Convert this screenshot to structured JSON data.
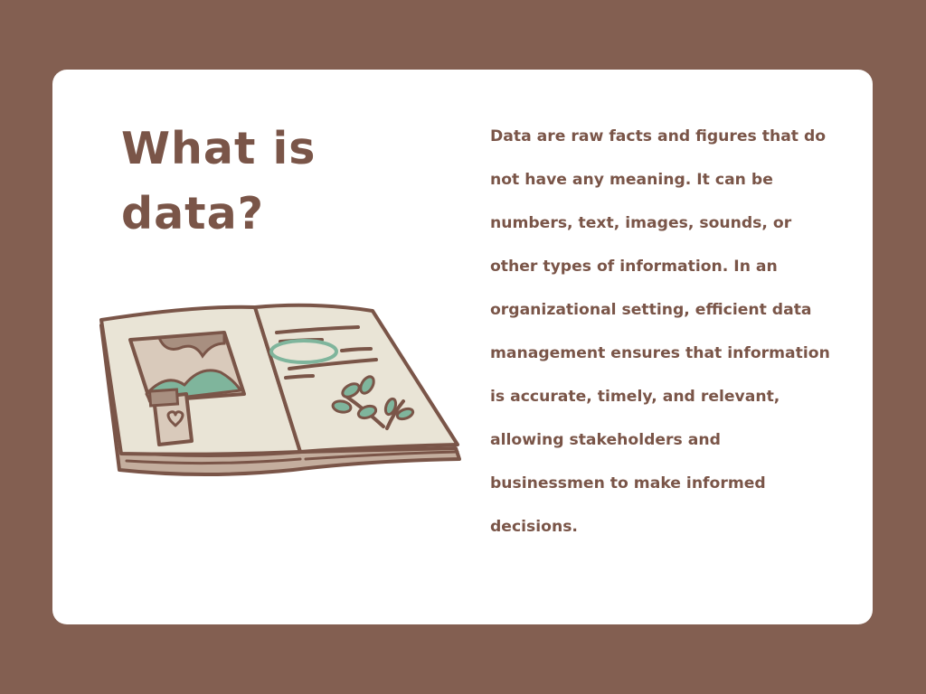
{
  "slide": {
    "title": "What is data?",
    "body": "Data are raw facts and figures that do not have any meaning. It can be numbers, text, images, sounds, or other types of information. In an organizational setting, efficient data management ensures that information is accurate, timely, and relevant, allowing stakeholders and businessmen to make informed decisions."
  },
  "colors": {
    "background": "#835f51",
    "card": "#ffffff",
    "text": "#7a5548",
    "book_page": "#e9e4d6",
    "book_outline": "#7a5548",
    "accent_green": "#7fb59c"
  },
  "illustration": {
    "icon": "open-book-icon"
  }
}
